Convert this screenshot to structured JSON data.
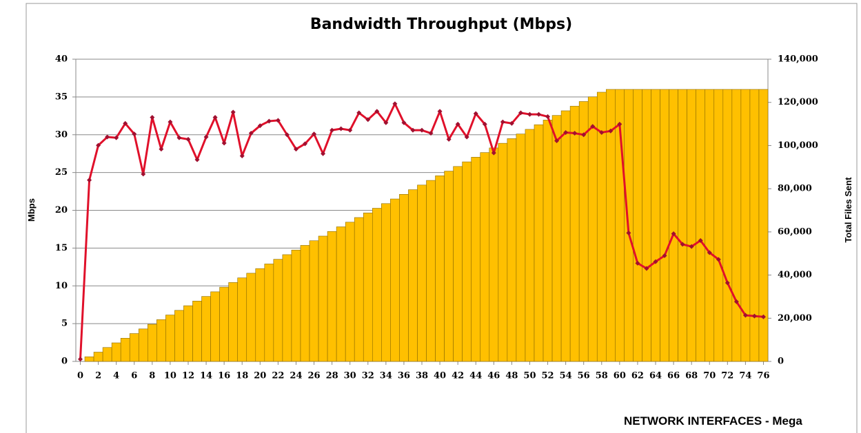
{
  "chart_data": {
    "type": "bar-line",
    "title": "Bandwidth Throughput (Mbps)",
    "y_label": "Mbps",
    "y2_label": "Total Files Sent",
    "annotation": "NETWORK INTERFACES - Mega",
    "x": [
      0,
      1,
      2,
      3,
      4,
      5,
      6,
      7,
      8,
      9,
      10,
      11,
      12,
      13,
      14,
      15,
      16,
      17,
      18,
      19,
      20,
      21,
      22,
      23,
      24,
      25,
      26,
      27,
      28,
      29,
      30,
      31,
      32,
      33,
      34,
      35,
      36,
      37,
      38,
      39,
      40,
      41,
      42,
      43,
      44,
      45,
      46,
      47,
      48,
      49,
      50,
      51,
      52,
      53,
      54,
      55,
      56,
      57,
      58,
      59,
      60,
      61,
      62,
      63,
      64,
      65,
      66,
      67,
      68,
      69,
      70,
      71,
      72,
      73,
      74,
      75,
      76
    ],
    "xlim": [
      -0.5,
      76.5
    ],
    "xticks": [
      0,
      2,
      4,
      6,
      8,
      10,
      12,
      14,
      16,
      18,
      20,
      22,
      24,
      26,
      28,
      30,
      32,
      34,
      36,
      38,
      40,
      42,
      44,
      46,
      48,
      50,
      52,
      54,
      56,
      58,
      60,
      62,
      64,
      66,
      68,
      70,
      72,
      74,
      76
    ],
    "ylim": [
      0,
      40
    ],
    "yticks": [
      0,
      5,
      10,
      15,
      20,
      25,
      30,
      35,
      40
    ],
    "y2lim": [
      0,
      140000
    ],
    "y2ticks": [
      0,
      {
        "value": 20000,
        "label": "20,000"
      },
      {
        "value": 40000,
        "label": "40,000"
      },
      {
        "value": 60000,
        "label": "60,000"
      },
      {
        "value": 80000,
        "label": "80,000"
      },
      {
        "value": 100000,
        "label": "100,000"
      },
      {
        "value": 120000,
        "label": "120,000"
      },
      {
        "value": 140000,
        "label": "140,000"
      }
    ],
    "grid": true,
    "series": [
      {
        "kind": "bar",
        "axis": "y2",
        "color": "#ffc000",
        "values": [
          0,
          2150,
          4300,
          6450,
          8600,
          10750,
          12900,
          15050,
          17200,
          19350,
          21500,
          23650,
          25800,
          27950,
          30100,
          32250,
          34400,
          36550,
          38700,
          40850,
          43000,
          45150,
          47300,
          49450,
          51600,
          53750,
          55900,
          58050,
          60200,
          62350,
          64500,
          66650,
          68800,
          70950,
          73100,
          75250,
          77400,
          79550,
          81700,
          83850,
          86000,
          88150,
          90300,
          92450,
          94600,
          96750,
          98900,
          101050,
          103200,
          105350,
          107500,
          109650,
          111800,
          113950,
          116100,
          118250,
          120400,
          122550,
          124700,
          126000,
          126000,
          126000,
          126000,
          126000,
          126000,
          126000,
          126000,
          126000,
          126000,
          126000,
          126000,
          126000,
          126000,
          126000,
          126000,
          126000,
          126000
        ]
      },
      {
        "kind": "line",
        "axis": "y",
        "color": "#e0102a",
        "values": [
          0.3,
          24,
          28.6,
          29.7,
          29.6,
          31.5,
          30.1,
          24.8,
          32.3,
          28.1,
          31.7,
          29.6,
          29.4,
          26.7,
          29.7,
          32.3,
          28.9,
          33,
          27.2,
          30.2,
          31.2,
          31.8,
          31.9,
          30,
          28.1,
          28.8,
          30.1,
          27.5,
          30.6,
          30.8,
          30.6,
          32.9,
          32,
          33.1,
          31.6,
          34.1,
          31.6,
          30.6,
          30.6,
          30.2,
          33.1,
          29.4,
          31.4,
          29.7,
          32.8,
          31.4,
          27.6,
          31.7,
          31.5,
          32.9,
          32.7,
          32.7,
          32.4,
          29.2,
          30.3,
          30.2,
          30,
          31.1,
          30.3,
          30.5,
          31.4,
          17,
          13,
          12.3,
          13.2,
          14,
          16.9,
          15.5,
          15.2,
          16,
          14.4,
          13.5,
          10.4,
          7.9,
          6.1,
          6,
          5.9
        ]
      }
    ]
  }
}
